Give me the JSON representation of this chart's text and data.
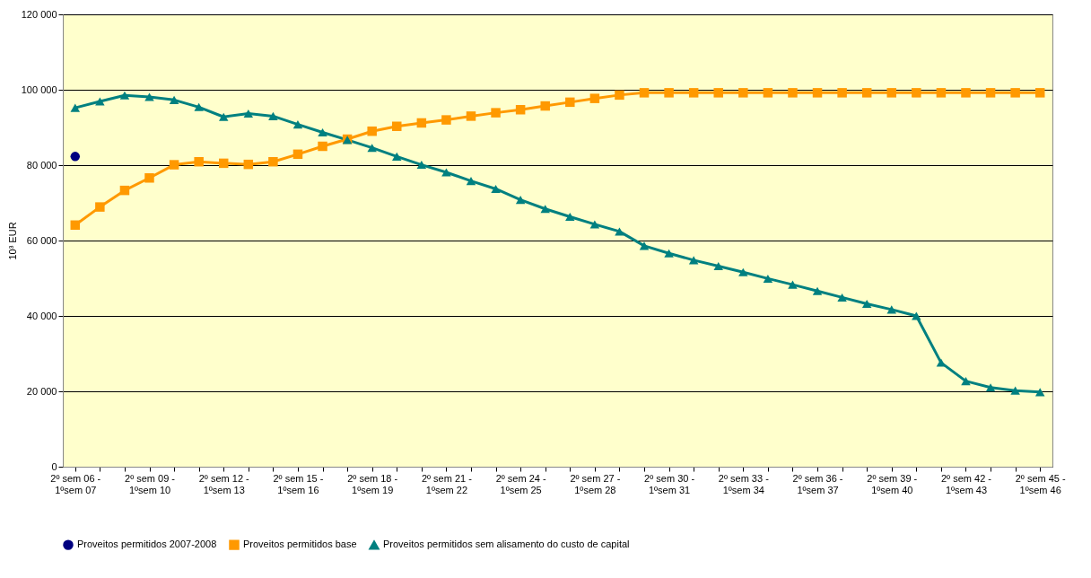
{
  "chart_data": {
    "type": "line",
    "ylabel": "10³ EUR",
    "categories": [
      "2º sem 06 - 1ºsem 07",
      null,
      null,
      "2º sem 09 - 1ºsem 10",
      null,
      null,
      "2º sem 12 - 1ºsem 13",
      null,
      null,
      "2º sem 15 - 1ºsem 16",
      null,
      null,
      "2º sem 18 - 1ºsem 19",
      null,
      null,
      "2º sem 21 - 1ºsem 22",
      null,
      null,
      "2º sem 24 - 1ºsem 25",
      null,
      null,
      "2º sem 27 - 1ºsem 28",
      null,
      null,
      "2º sem 30 - 1ºsem 31",
      null,
      null,
      "2º sem 33 - 1ºsem 34",
      null,
      null,
      "2º sem 36 - 1ºsem 37",
      null,
      null,
      "2º sem 39 - 1ºsem 40",
      null,
      null,
      "2º sem 42 - 1ºsem 43",
      null,
      null,
      "2º sem 45 - 1ºsem 46"
    ],
    "series": [
      {
        "name": "Proveitos permitidos 2007-2008",
        "color": "#000080",
        "marker": "circle",
        "values": [
          82300,
          null,
          null,
          null,
          null,
          null,
          null,
          null,
          null,
          null,
          null,
          null,
          null,
          null,
          null,
          null,
          null,
          null,
          null,
          null,
          null,
          null,
          null,
          null,
          null,
          null,
          null,
          null,
          null,
          null,
          null,
          null,
          null,
          null,
          null,
          null,
          null,
          null,
          null,
          null
        ]
      },
      {
        "name": "Proveitos permitidos base",
        "color": "#ff9900",
        "marker": "square",
        "values": [
          64100,
          68900,
          73300,
          76600,
          80100,
          80900,
          80500,
          80200,
          80900,
          82900,
          85000,
          86900,
          89000,
          90300,
          91200,
          92000,
          93000,
          93900,
          94700,
          95700,
          96700,
          97700,
          98600,
          99200,
          99200,
          99200,
          99200,
          99200,
          99200,
          99200,
          99200,
          99200,
          99200,
          99200,
          99200,
          99200,
          99200,
          99200,
          99200,
          99200
        ]
      },
      {
        "name": "Proveitos permitidos sem alisamento do custo de capital",
        "color": "#008080",
        "marker": "triangle",
        "values": [
          95200,
          96900,
          98500,
          98100,
          97300,
          95400,
          92800,
          93700,
          93000,
          90800,
          88700,
          86700,
          84600,
          82300,
          80100,
          78100,
          75800,
          73700,
          70800,
          68400,
          66300,
          64300,
          62400,
          58600,
          56600,
          54800,
          53200,
          51600,
          49900,
          48300,
          46600,
          44900,
          43200,
          41700,
          40000,
          27600,
          22700,
          21000,
          20200,
          19800
        ]
      }
    ],
    "ylim": [
      0,
      120000
    ],
    "yticks": [
      {
        "value": 0,
        "label": "0"
      },
      {
        "value": 20000,
        "label": "20 000"
      },
      {
        "value": 40000,
        "label": "40 000"
      },
      {
        "value": 60000,
        "label": "60 000"
      },
      {
        "value": 80000,
        "label": "80 000"
      },
      {
        "value": 100000,
        "label": "100 000"
      },
      {
        "value": 120000,
        "label": "120 000"
      }
    ],
    "grid": "y",
    "legend": "bottom"
  }
}
